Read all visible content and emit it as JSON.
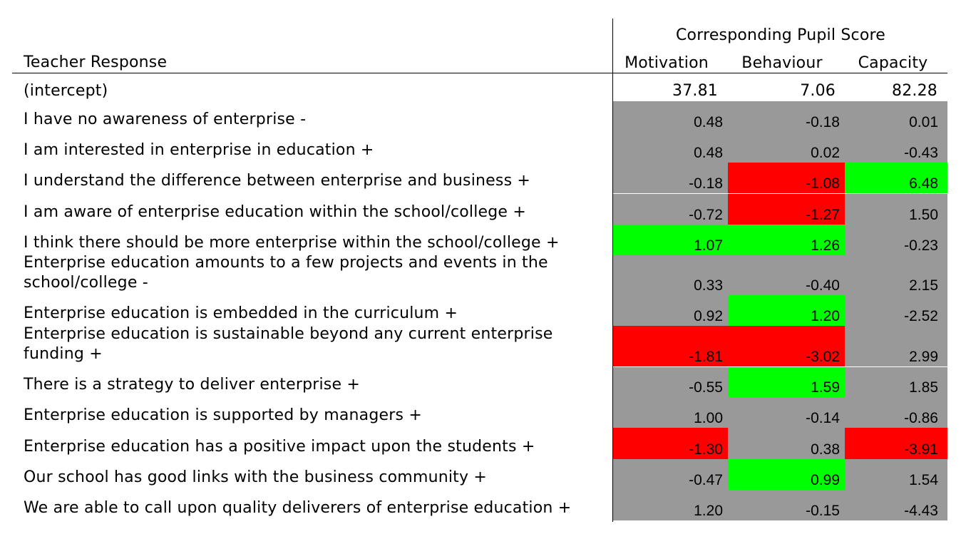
{
  "header": {
    "group_title": "Corresponding Pupil Score",
    "row_header": "Teacher Response",
    "columns": [
      "Motivation",
      "Behaviour",
      "Capacity"
    ]
  },
  "intercept": {
    "label": "(intercept)",
    "values": [
      "37.81",
      "7.06",
      "82.28"
    ]
  },
  "colors": {
    "neutral": "#999999",
    "negative": "#ff0000",
    "positive": "#00ff00"
  },
  "rows": [
    {
      "label": [
        "I have no awareness of enterprise -"
      ],
      "values": [
        "0.48",
        "-0.18",
        "0.01"
      ],
      "status": [
        "neutral",
        "neutral",
        "neutral"
      ]
    },
    {
      "label": [
        "I am interested in enterprise in education +"
      ],
      "values": [
        "0.48",
        "0.02",
        "-0.43"
      ],
      "status": [
        "neutral",
        "neutral",
        "neutral"
      ]
    },
    {
      "label": [
        "I understand the difference between enterprise and business +"
      ],
      "values": [
        "-0.18",
        "-1.08",
        "6.48"
      ],
      "status": [
        "neutral",
        "negative",
        "positive"
      ]
    },
    {
      "label": [
        "I am aware of enterprise education within the school/college +"
      ],
      "values": [
        "-0.72",
        "-1.27",
        "1.50"
      ],
      "status": [
        "neutral",
        "negative",
        "neutral"
      ]
    },
    {
      "label": [
        "I think there should be more enterprise within the school/college +"
      ],
      "values": [
        "1.07",
        "1.26",
        "-0.23"
      ],
      "status": [
        "positive",
        "positive",
        "neutral"
      ]
    },
    {
      "label": [
        "Enterprise education amounts to a few projects and events in the",
        "school/college -"
      ],
      "values": [
        "0.33",
        "-0.40",
        "2.15"
      ],
      "status": [
        "neutral",
        "neutral",
        "neutral"
      ]
    },
    {
      "label": [
        "Enterprise education is embedded in the curriculum +"
      ],
      "values": [
        "0.92",
        "1.20",
        "-2.52"
      ],
      "status": [
        "neutral",
        "positive",
        "neutral"
      ]
    },
    {
      "label": [
        "Enterprise education is sustainable beyond any current enterprise",
        "funding +"
      ],
      "values": [
        "-1.81",
        "-3.02",
        "2.99"
      ],
      "status": [
        "negative",
        "negative",
        "neutral"
      ]
    },
    {
      "label": [
        "There is a strategy to deliver enterprise +"
      ],
      "values": [
        "-0.55",
        "1.59",
        "1.85"
      ],
      "status": [
        "neutral",
        "positive",
        "neutral"
      ]
    },
    {
      "label": [
        "Enterprise education is supported by managers +"
      ],
      "values": [
        "1.00",
        "-0.14",
        "-0.86"
      ],
      "status": [
        "neutral",
        "neutral",
        "neutral"
      ]
    },
    {
      "label": [
        "Enterprise education has a positive impact upon the students +"
      ],
      "values": [
        "-1.30",
        "0.38",
        "-3.91"
      ],
      "status": [
        "negative",
        "neutral",
        "negative"
      ]
    },
    {
      "label": [
        "Our school has good links with the business community +"
      ],
      "values": [
        "-0.47",
        "0.99",
        "1.54"
      ],
      "status": [
        "neutral",
        "positive",
        "neutral"
      ]
    },
    {
      "label": [
        "We are able to call upon quality deliverers of enterprise education +"
      ],
      "values": [
        "1.20",
        "-0.15",
        "-4.43"
      ],
      "status": [
        "neutral",
        "neutral",
        "neutral"
      ]
    }
  ]
}
